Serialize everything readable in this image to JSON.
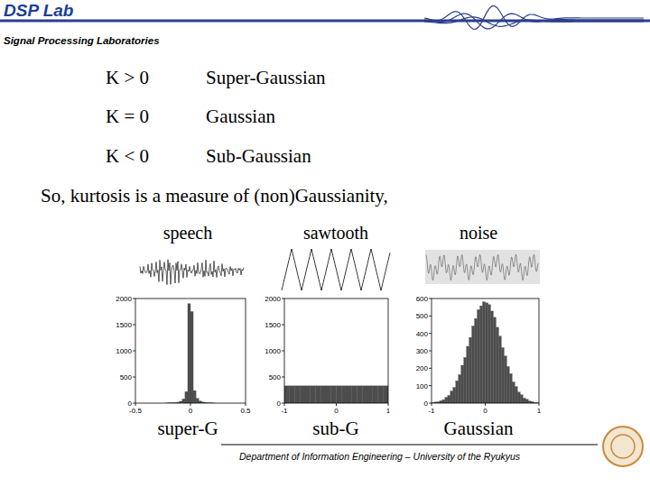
{
  "header": {
    "lab": "DSP Lab",
    "subtitle": "Signal Processing Laboratories"
  },
  "table": {
    "rows": [
      [
        "K > 0",
        "Super-Gaussian"
      ],
      [
        "K = 0",
        "Gaussian"
      ],
      [
        "K < 0",
        "Sub-Gaussian"
      ]
    ]
  },
  "statement": "So, kurtosis is a measure of (non)Gaussianity,",
  "footer": {
    "text": "Department of Information Engineering – University of the Ryukyus"
  },
  "chart_data": [
    {
      "type": "histogram",
      "title": "speech",
      "x_label": "super-G",
      "color": "#4d4d4d",
      "bins": [
        -0.5,
        -0.475,
        -0.45,
        -0.425,
        -0.4,
        -0.375,
        -0.35,
        -0.325,
        -0.3,
        -0.275,
        -0.25,
        -0.225,
        -0.2,
        -0.175,
        -0.15,
        -0.125,
        -0.1,
        -0.075,
        -0.05,
        -0.025,
        0,
        0.025,
        0.05,
        0.075,
        0.1,
        0.125,
        0.15,
        0.175,
        0.2,
        0.225,
        0.25,
        0.275,
        0.3,
        0.325,
        0.35,
        0.375,
        0.4,
        0.425,
        0.45,
        0.475,
        0.5
      ],
      "values": [
        0,
        0,
        0,
        0,
        0,
        0,
        0,
        0,
        0,
        0,
        0,
        2,
        4,
        6,
        10,
        18,
        35,
        80,
        220,
        1900,
        1750,
        240,
        90,
        40,
        20,
        12,
        6,
        4,
        2,
        0,
        0,
        0,
        0,
        0,
        0,
        0,
        0,
        0,
        0,
        0
      ],
      "xlim": [
        -0.5,
        0.5
      ],
      "ylim": [
        0,
        2000
      ],
      "xticks": [
        -0.5,
        0,
        0.5
      ],
      "yticks": [
        0,
        500,
        1000,
        1500,
        2000
      ]
    },
    {
      "type": "histogram",
      "title": "sawtooth",
      "x_label": "sub-G",
      "color": "#4d4d4d",
      "bins": [
        -1,
        -0.9,
        -0.8,
        -0.7,
        -0.6,
        -0.5,
        -0.4,
        -0.3,
        -0.2,
        -0.1,
        0,
        0.1,
        0.2,
        0.3,
        0.4,
        0.5,
        0.6,
        0.7,
        0.8,
        0.9,
        1
      ],
      "values": [
        330,
        330,
        330,
        330,
        330,
        330,
        330,
        330,
        330,
        330,
        330,
        330,
        330,
        330,
        330,
        330,
        330,
        330,
        330,
        330
      ],
      "xlim": [
        -1,
        1
      ],
      "ylim": [
        0,
        2000
      ],
      "xticks": [
        -1,
        0,
        1
      ],
      "yticks": [
        0,
        500,
        1000,
        1500,
        2000
      ]
    },
    {
      "type": "histogram",
      "title": "noise",
      "x_label": "Gaussian",
      "color": "#4d4d4d",
      "bins": [
        -1,
        -0.95,
        -0.9,
        -0.85,
        -0.8,
        -0.75,
        -0.7,
        -0.65,
        -0.6,
        -0.55,
        -0.5,
        -0.45,
        -0.4,
        -0.35,
        -0.3,
        -0.25,
        -0.2,
        -0.15,
        -0.1,
        -0.05,
        0,
        0.05,
        0.1,
        0.15,
        0.2,
        0.25,
        0.3,
        0.35,
        0.4,
        0.45,
        0.5,
        0.55,
        0.6,
        0.65,
        0.7,
        0.75,
        0.8,
        0.85,
        0.9,
        0.95,
        1
      ],
      "values": [
        2,
        6,
        7,
        14,
        19,
        33,
        44,
        69,
        90,
        128,
        163,
        217,
        262,
        326,
        377,
        442,
        485,
        536,
        558,
        581,
        575,
        565,
        528,
        492,
        435,
        384,
        318,
        270,
        210,
        169,
        122,
        95,
        63,
        48,
        29,
        22,
        12,
        9,
        4,
        3
      ],
      "xlim": [
        -1,
        1
      ],
      "ylim": [
        0,
        600
      ],
      "xticks": [
        -1,
        0,
        1
      ],
      "yticks": [
        0,
        100,
        200,
        300,
        400,
        500,
        600
      ]
    }
  ]
}
